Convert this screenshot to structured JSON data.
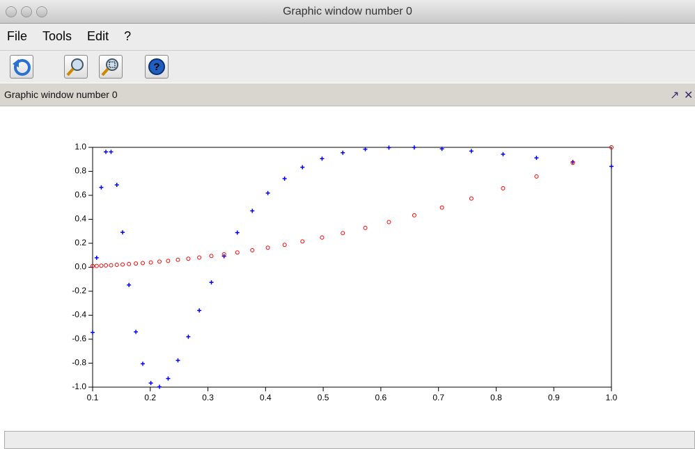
{
  "window": {
    "title": "Graphic window number 0",
    "menu": [
      "File",
      "Tools",
      "Edit",
      "?"
    ],
    "panel_title": "Graphic window number 0"
  },
  "chart_data": {
    "type": "scatter",
    "x": [
      0.1,
      0.107,
      0.115,
      0.123,
      0.132,
      0.142,
      0.152,
      0.163,
      0.175,
      0.187,
      0.201,
      0.216,
      0.231,
      0.248,
      0.266,
      0.285,
      0.306,
      0.328,
      0.351,
      0.377,
      0.404,
      0.433,
      0.464,
      0.498,
      0.534,
      0.573,
      0.614,
      0.658,
      0.706,
      0.757,
      0.812,
      0.87,
      0.933,
      1.0
    ],
    "series": [
      {
        "color": "#0000ff",
        "marker": "plus",
        "values": [
          -0.544,
          0.079,
          0.666,
          0.962,
          0.962,
          0.687,
          0.291,
          -0.148,
          -0.539,
          -0.805,
          -0.966,
          -0.997,
          -0.928,
          -0.777,
          -0.58,
          -0.36,
          -0.126,
          0.092,
          0.289,
          0.47,
          0.619,
          0.739,
          0.834,
          0.906,
          0.955,
          0.985,
          0.998,
          0.999,
          0.988,
          0.969,
          0.943,
          0.912,
          0.878,
          0.841
        ]
      },
      {
        "color": "#ff0000",
        "marker": "circle",
        "values": [
          0.01,
          0.011,
          0.013,
          0.015,
          0.017,
          0.02,
          0.023,
          0.027,
          0.031,
          0.035,
          0.04,
          0.047,
          0.053,
          0.062,
          0.071,
          0.081,
          0.094,
          0.108,
          0.123,
          0.142,
          0.163,
          0.187,
          0.215,
          0.248,
          0.285,
          0.328,
          0.377,
          0.433,
          0.498,
          0.573,
          0.659,
          0.757,
          0.871,
          1.0
        ]
      }
    ],
    "xlim": [
      0.1,
      1.0
    ],
    "xticks": [
      0.1,
      0.2,
      0.3,
      0.4,
      0.5,
      0.6,
      0.7,
      0.8,
      0.9,
      {
        "value": 1.0,
        "label": "1.0"
      }
    ],
    "ylim": [
      -1.0,
      1.0
    ],
    "yticks": [
      {
        "value": -1.0,
        "label": "-1.0"
      },
      -0.8,
      -0.6,
      -0.4,
      -0.2,
      {
        "value": 0.0,
        "label": "0.0"
      },
      0.2,
      0.4,
      0.6,
      0.8,
      {
        "value": 1.0,
        "label": "1.0"
      }
    ]
  }
}
